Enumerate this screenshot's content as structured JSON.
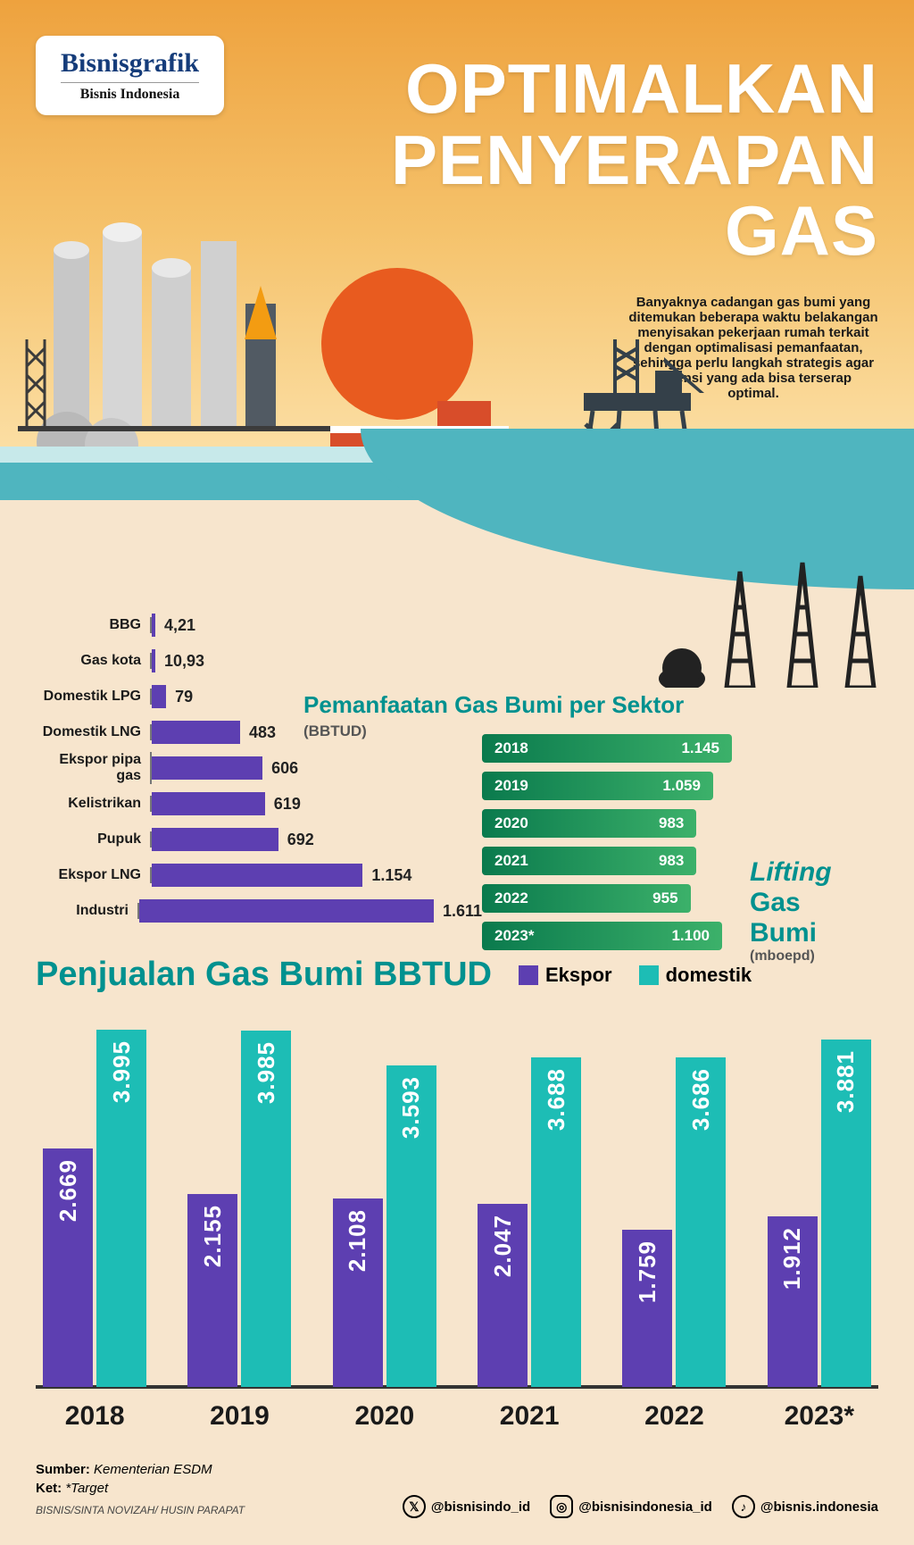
{
  "logo": {
    "main": "Bisnisgrafik",
    "sub": "Bisnis Indonesia"
  },
  "headline": [
    "OPTIMALKAN",
    "PENYERAPAN",
    "GAS"
  ],
  "intro": "Banyaknya cadangan gas bumi yang ditemukan beberapa waktu belakangan menyisakan pekerjaan rumah terkait dengan optimalisasi pemanfaatan, sehingga perlu langkah strategis agar potensi yang ada bisa terserap optimal.",
  "colors": {
    "purple": "#5d3fb1",
    "teal": "#1dbdb5",
    "tealText": "#00918f",
    "greenA": "#0a7a4d",
    "greenB": "#3cb16a",
    "skyTop": "#eea23e",
    "skyMid": "#f5c26b",
    "skyBot": "#fde6b3",
    "sea": "#4fb5bf",
    "sand": "#f7e5cd",
    "sun": "#e85b1f",
    "ship": "#d84d2a"
  },
  "sector": {
    "title": "Pemanfaatan Gas Bumi per Sektor",
    "unit": "(BBTUD)",
    "max": 1611,
    "bar_color": "#5d3fb1",
    "rows": [
      {
        "label": "BBG",
        "value": 4.21,
        "display": "4,21"
      },
      {
        "label": "Gas kota",
        "value": 10.93,
        "display": "10,93"
      },
      {
        "label": "Domestik LPG",
        "value": 79,
        "display": "79"
      },
      {
        "label": "Domestik LNG",
        "value": 483,
        "display": "483"
      },
      {
        "label": "Ekspor pipa gas",
        "value": 606,
        "display": "606"
      },
      {
        "label": "Kelistrikan",
        "value": 619,
        "display": "619"
      },
      {
        "label": "Pupuk",
        "value": 692,
        "display": "692"
      },
      {
        "label": "Ekspor LNG",
        "value": 1154,
        "display": "1.154"
      },
      {
        "label": "Industri",
        "value": 1611,
        "display": "1.611"
      }
    ]
  },
  "lifting": {
    "title_em": "Lifting",
    "title": "Gas Bumi",
    "unit": "(mboepd)",
    "max": 1145,
    "rows": [
      {
        "year": "2018",
        "value": 1145,
        "display": "1.145"
      },
      {
        "year": "2019",
        "value": 1059,
        "display": "1.059"
      },
      {
        "year": "2020",
        "value": 983,
        "display": "983"
      },
      {
        "year": "2021",
        "value": 983,
        "display": "983"
      },
      {
        "year": "2022",
        "value": 955,
        "display": "955"
      },
      {
        "year": "2023*",
        "value": 1100,
        "display": "1.100"
      }
    ]
  },
  "sales": {
    "title": "Penjualan Gas Bumi BBTUD",
    "legend": {
      "ekspor": "Ekspor",
      "domestik": "domestik"
    },
    "ekspor_color": "#5d3fb1",
    "domestik_color": "#1dbdb5",
    "max": 3995,
    "years": [
      {
        "year": "2018",
        "ekspor": 2669,
        "ekspor_d": "2.669",
        "domestik": 3995,
        "domestik_d": "3.995"
      },
      {
        "year": "2019",
        "ekspor": 2155,
        "ekspor_d": "2.155",
        "domestik": 3985,
        "domestik_d": "3.985"
      },
      {
        "year": "2020",
        "ekspor": 2108,
        "ekspor_d": "2.108",
        "domestik": 3593,
        "domestik_d": "3.593"
      },
      {
        "year": "2021",
        "ekspor": 2047,
        "ekspor_d": "2.047",
        "domestik": 3688,
        "domestik_d": "3.688"
      },
      {
        "year": "2022",
        "ekspor": 1759,
        "ekspor_d": "1.759",
        "domestik": 3686,
        "domestik_d": "3.686"
      },
      {
        "year": "2023*",
        "ekspor": 1912,
        "ekspor_d": "1.912",
        "domestik": 3881,
        "domestik_d": "3.881"
      }
    ]
  },
  "footer": {
    "source_label": "Sumber:",
    "source": "Kementerian ESDM",
    "note_label": "Ket:",
    "note": "*Target",
    "credits_prefix": "BISNIS/",
    "credits": "SINTA NOVIZAH/ HUSIN PARAPAT",
    "socials": [
      {
        "icon": "twitter",
        "handle": "@bisnisindo_id"
      },
      {
        "icon": "instagram",
        "handle": "@bisnisindonesia_id"
      },
      {
        "icon": "tiktok",
        "handle": "@bisnis.indonesia"
      }
    ]
  }
}
